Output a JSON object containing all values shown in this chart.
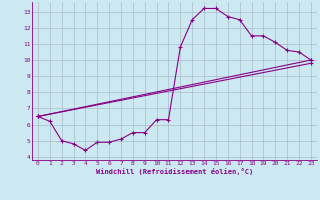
{
  "xlabel": "Windchill (Refroidissement éolien,°C)",
  "bg_color": "#cce8f0",
  "grid_color": "#aabbcc",
  "line_color": "#880088",
  "xlim": [
    -0.5,
    23.5
  ],
  "ylim": [
    3.8,
    13.6
  ],
  "yticks": [
    4,
    5,
    6,
    7,
    8,
    9,
    10,
    11,
    12,
    13
  ],
  "xticks": [
    0,
    1,
    2,
    3,
    4,
    5,
    6,
    7,
    8,
    9,
    10,
    11,
    12,
    13,
    14,
    15,
    16,
    17,
    18,
    19,
    20,
    21,
    22,
    23
  ],
  "line1_x": [
    0,
    1,
    2,
    3,
    4,
    5,
    6,
    7,
    8,
    9,
    10,
    11,
    12,
    13,
    14,
    15,
    16,
    17,
    18,
    19,
    20,
    21,
    22,
    23
  ],
  "line1_y": [
    6.5,
    6.2,
    5.0,
    4.8,
    4.4,
    4.9,
    4.9,
    5.1,
    5.5,
    5.5,
    6.3,
    6.3,
    10.8,
    12.5,
    13.2,
    13.2,
    12.7,
    12.5,
    11.5,
    11.5,
    11.1,
    10.6,
    10.5,
    10.0
  ],
  "line2_x": [
    0,
    23
  ],
  "line2_y": [
    6.5,
    10.0
  ],
  "line3_x": [
    0,
    23
  ],
  "line3_y": [
    6.5,
    9.8
  ]
}
